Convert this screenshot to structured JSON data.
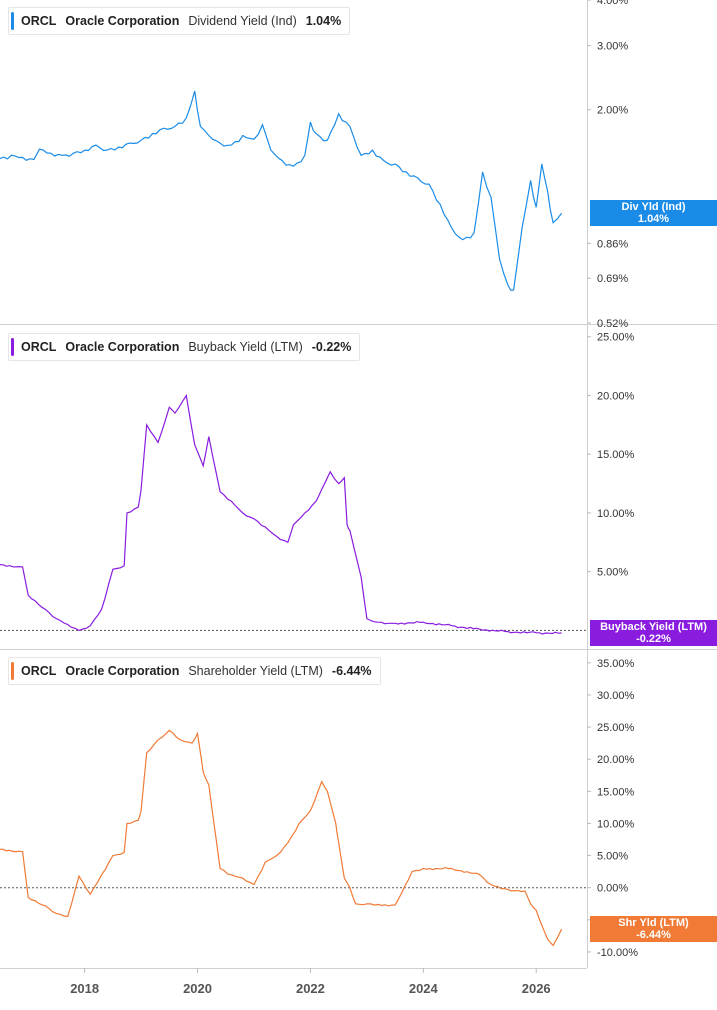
{
  "chart_data": [
    {
      "type": "line",
      "ticker": "ORCL",
      "company": "Oracle Corporation",
      "title": "Dividend Yield (Ind)",
      "current": "1.04%",
      "tag_label": "Div Yld (Ind)",
      "tag_value": "1.04%",
      "color": "#1a8ce8",
      "scale": "log",
      "ylim": [
        0.52,
        4.0
      ],
      "yticks": [
        4.0,
        3.0,
        2.0,
        0.86,
        0.69,
        0.52
      ],
      "ytick_labels": [
        "4.00%",
        "3.00%",
        "2.00%",
        "0.86%",
        "0.69%",
        "0.52%"
      ],
      "zero_line": false,
      "x": [
        2016.5,
        2016.7,
        2016.9,
        2017.1,
        2017.2,
        2017.4,
        2017.6,
        2017.8,
        2018.0,
        2018.2,
        2018.4,
        2018.6,
        2018.8,
        2019.0,
        2019.2,
        2019.4,
        2019.6,
        2019.8,
        2019.95,
        2020.05,
        2020.2,
        2020.4,
        2020.6,
        2020.8,
        2021.0,
        2021.15,
        2021.3,
        2021.5,
        2021.7,
        2021.9,
        2022.0,
        2022.1,
        2022.3,
        2022.5,
        2022.7,
        2022.9,
        2023.1,
        2023.3,
        2023.5,
        2023.7,
        2023.9,
        2024.1,
        2024.3,
        2024.5,
        2024.7,
        2024.9,
        2025.05,
        2025.2,
        2025.35,
        2025.5,
        2025.6,
        2025.75,
        2025.9,
        2026.0,
        2026.1,
        2026.2,
        2026.3,
        2026.45
      ],
      "values": [
        1.47,
        1.5,
        1.48,
        1.46,
        1.56,
        1.52,
        1.5,
        1.52,
        1.55,
        1.6,
        1.55,
        1.58,
        1.62,
        1.65,
        1.72,
        1.78,
        1.8,
        1.9,
        2.25,
        1.8,
        1.7,
        1.62,
        1.6,
        1.7,
        1.66,
        1.82,
        1.55,
        1.45,
        1.4,
        1.5,
        1.85,
        1.72,
        1.65,
        1.95,
        1.8,
        1.5,
        1.55,
        1.45,
        1.42,
        1.35,
        1.3,
        1.25,
        1.1,
        0.95,
        0.88,
        0.92,
        1.35,
        1.15,
        0.78,
        0.66,
        0.64,
        0.95,
        1.28,
        1.08,
        1.42,
        1.2,
        0.98,
        1.04
      ]
    },
    {
      "type": "line",
      "ticker": "ORCL",
      "company": "Oracle Corporation",
      "title": "Buyback Yield (LTM)",
      "current": "-0.22%",
      "tag_label": "Buyback Yield (LTM)",
      "tag_value": "-0.22%",
      "color": "#8a1ce0",
      "scale": "linear",
      "ylim": [
        -1.5,
        26.0
      ],
      "yticks": [
        25,
        20,
        15,
        10,
        5
      ],
      "ytick_labels": [
        "25.00%",
        "20.00%",
        "15.00%",
        "10.00%",
        "5.00%"
      ],
      "zero_line": true,
      "x": [
        2016.5,
        2016.9,
        2017.0,
        2017.3,
        2017.5,
        2017.7,
        2017.9,
        2018.1,
        2018.3,
        2018.5,
        2018.7,
        2018.75,
        2018.95,
        2019.0,
        2019.1,
        2019.3,
        2019.5,
        2019.6,
        2019.8,
        2019.95,
        2020.1,
        2020.2,
        2020.4,
        2020.6,
        2020.8,
        2021.0,
        2021.2,
        2021.4,
        2021.6,
        2021.7,
        2021.9,
        2022.1,
        2022.2,
        2022.35,
        2022.5,
        2022.6,
        2022.65,
        2022.7,
        2022.85,
        2022.9,
        2023.0,
        2023.2,
        2023.5,
        2024.0,
        2024.5,
        2025.0,
        2025.5,
        2026.0,
        2026.45
      ],
      "values": [
        5.6,
        5.4,
        3.0,
        1.8,
        1.0,
        0.5,
        0.0,
        0.4,
        1.8,
        5.2,
        5.5,
        10.0,
        10.5,
        12.0,
        17.5,
        16.0,
        19.0,
        18.5,
        20.0,
        15.8,
        14.0,
        16.5,
        11.8,
        11.0,
        10.0,
        9.5,
        8.8,
        8.0,
        7.5,
        9.0,
        10.0,
        11.0,
        12.0,
        13.5,
        12.5,
        13.0,
        9.0,
        8.5,
        5.5,
        4.5,
        1.0,
        0.7,
        0.6,
        0.7,
        0.4,
        0.1,
        -0.1,
        -0.2,
        -0.22
      ]
    },
    {
      "type": "line",
      "ticker": "ORCL",
      "company": "Oracle Corporation",
      "title": "Shareholder Yield (LTM)",
      "current": "-6.44%",
      "tag_label": "Shr Yld (LTM)",
      "tag_value": "-6.44%",
      "color": "#f07a36",
      "scale": "linear",
      "ylim": [
        -12.5,
        37.0
      ],
      "yticks": [
        35,
        30,
        25,
        20,
        15,
        10,
        5,
        0,
        -5,
        -10
      ],
      "ytick_labels": [
        "35.00%",
        "30.00%",
        "25.00%",
        "20.00%",
        "15.00%",
        "10.00%",
        "5.00%",
        "0.00%",
        "-5.00%",
        "-10.00%"
      ],
      "zero_line": true,
      "x": [
        2016.5,
        2016.9,
        2017.0,
        2017.3,
        2017.5,
        2017.7,
        2017.9,
        2018.1,
        2018.3,
        2018.5,
        2018.7,
        2018.75,
        2018.95,
        2019.0,
        2019.1,
        2019.3,
        2019.5,
        2019.7,
        2019.9,
        2020.0,
        2020.1,
        2020.2,
        2020.4,
        2020.6,
        2020.8,
        2021.0,
        2021.2,
        2021.4,
        2021.6,
        2021.8,
        2022.0,
        2022.2,
        2022.3,
        2022.45,
        2022.5,
        2022.6,
        2022.7,
        2022.8,
        2023.0,
        2023.2,
        2023.5,
        2023.8,
        2024.0,
        2024.5,
        2025.0,
        2025.2,
        2025.5,
        2025.8,
        2025.9,
        2026.0,
        2026.2,
        2026.3,
        2026.45
      ],
      "values": [
        6.0,
        5.6,
        -1.5,
        -2.8,
        -4.0,
        -4.5,
        1.8,
        -1.0,
        2.0,
        5.0,
        5.5,
        10.0,
        10.5,
        12.0,
        21.0,
        23.0,
        24.5,
        23.0,
        22.5,
        24.0,
        18.0,
        16.0,
        3.0,
        2.0,
        1.5,
        0.5,
        4.0,
        5.0,
        7.0,
        10.0,
        12.0,
        16.5,
        15.0,
        10.0,
        7.0,
        1.5,
        0.0,
        -2.5,
        -2.5,
        -2.6,
        -2.7,
        2.5,
        3.0,
        3.0,
        2.0,
        0.5,
        -0.3,
        -0.5,
        -2.5,
        -3.5,
        -8.0,
        -9.0,
        -6.44
      ]
    }
  ],
  "x_axis": {
    "ticks": [
      2018,
      2020,
      2022,
      2024,
      2026
    ],
    "labels": [
      "2018",
      "2020",
      "2022",
      "2024",
      "2026"
    ],
    "range": [
      2016.5,
      2026.9
    ]
  }
}
